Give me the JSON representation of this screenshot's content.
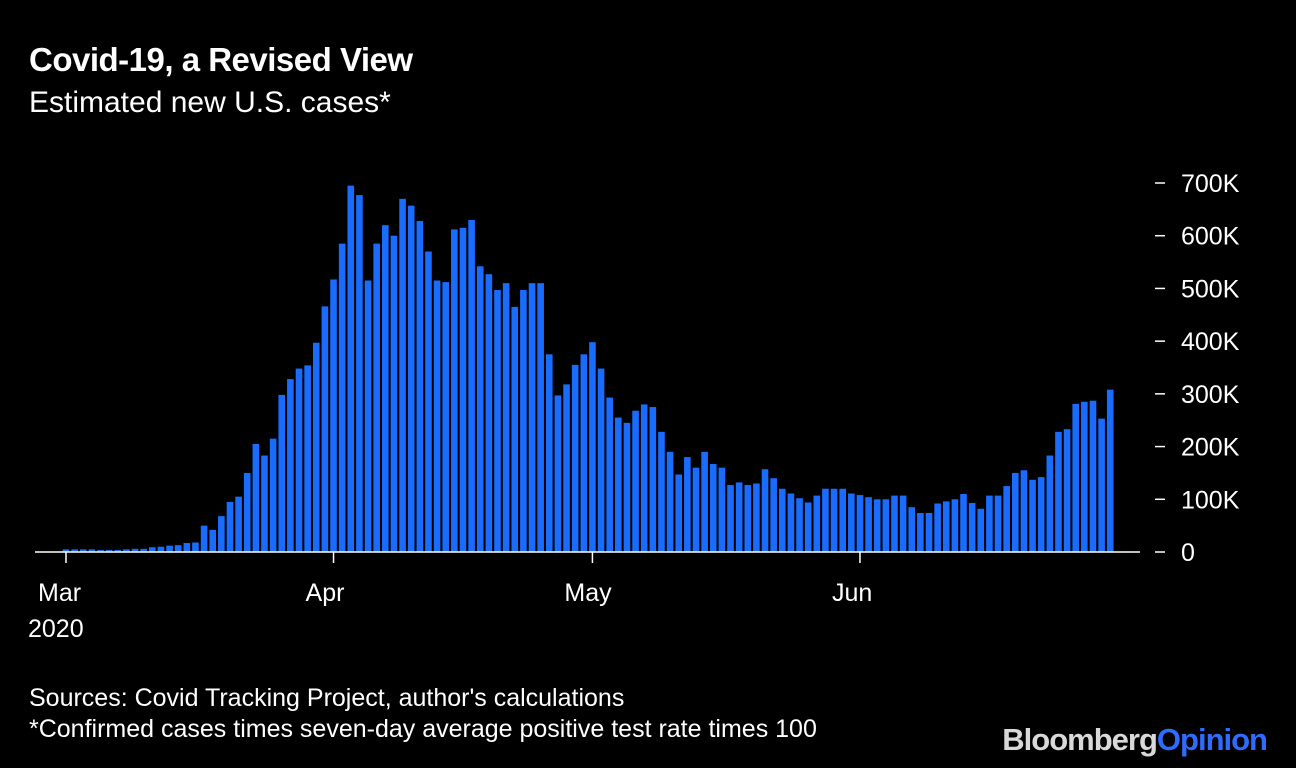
{
  "header": {
    "title": "Covid-19, a Revised View",
    "subtitle": "Estimated new U.S. cases*"
  },
  "footer": {
    "source": "Sources: Covid Tracking Project, author's calculations",
    "note": "*Confirmed cases times seven-day average positive test rate times 100",
    "brand_part1": "Bloomberg",
    "brand_part2": "Opinion"
  },
  "colors": {
    "background": "#000000",
    "bar": "#1a6cff",
    "text": "#ffffff",
    "brand_accent": "#2f6bff"
  },
  "chart_data": {
    "type": "bar",
    "title": "Covid-19, a Revised View",
    "subtitle": "Estimated new U.S. cases*",
    "xlabel": "",
    "ylabel": "",
    "ylim": [
      0,
      700000
    ],
    "yticks": [
      {
        "value": 0,
        "label": "0"
      },
      {
        "value": 100000,
        "label": "100K"
      },
      {
        "value": 200000,
        "label": "200K"
      },
      {
        "value": 300000,
        "label": "300K"
      },
      {
        "value": 400000,
        "label": "400K"
      },
      {
        "value": 500000,
        "label": "500K"
      },
      {
        "value": 600000,
        "label": "600K"
      },
      {
        "value": 700000,
        "label": "700K"
      }
    ],
    "xticks": [
      {
        "index": 0,
        "label": "Mar",
        "sublabel": "2020"
      },
      {
        "index": 31,
        "label": "Apr",
        "sublabel": ""
      },
      {
        "index": 61,
        "label": "May",
        "sublabel": ""
      },
      {
        "index": 92,
        "label": "Jun",
        "sublabel": ""
      }
    ],
    "start_date": "2020-03-01",
    "grid": false,
    "legend": "none",
    "series": [
      {
        "name": "Estimated new U.S. cases",
        "values": [
          5000,
          5000,
          5000,
          5000,
          4000,
          4000,
          4000,
          5000,
          6000,
          6000,
          9000,
          10000,
          12000,
          13000,
          17000,
          18000,
          50000,
          42000,
          68000,
          95000,
          105000,
          150000,
          205000,
          183000,
          215000,
          298000,
          328000,
          348000,
          354000,
          397000,
          466000,
          517000,
          585000,
          695000,
          677000,
          515000,
          585000,
          620000,
          600000,
          670000,
          657000,
          628000,
          570000,
          515000,
          512000,
          612000,
          615000,
          630000,
          542000,
          527000,
          497000,
          510000,
          465000,
          497000,
          510000,
          510000,
          375000,
          297000,
          318000,
          355000,
          375000,
          398000,
          348000,
          293000,
          255000,
          245000,
          268000,
          280000,
          275000,
          228000,
          190000,
          147000,
          180000,
          160000,
          190000,
          167000,
          160000,
          127000,
          132000,
          127000,
          130000,
          157000,
          140000,
          120000,
          111000,
          102000,
          94000,
          107000,
          120000,
          120000,
          120000,
          111000,
          108000,
          104000,
          100000,
          100000,
          107000,
          107000,
          85000,
          74000,
          74000,
          92000,
          96000,
          100000,
          110000,
          93000,
          82000,
          107000,
          107000,
          125000,
          150000,
          155000,
          137000,
          142000,
          183000,
          228000,
          233000,
          281000,
          285000,
          287000,
          253000,
          308000
        ]
      }
    ]
  }
}
